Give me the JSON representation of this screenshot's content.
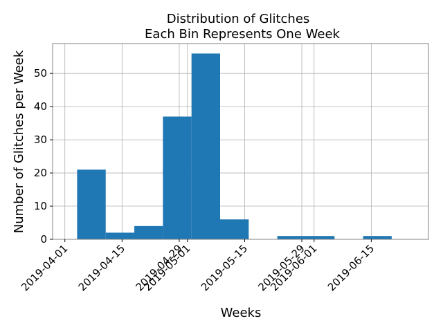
{
  "chart_data": {
    "type": "bar",
    "title_lines": [
      "Distribution of Glitches",
      "Each Bin Represents One Week"
    ],
    "xlabel": "Weeks",
    "ylabel": "Number of Glitches per Week",
    "ylim": [
      0,
      59
    ],
    "xlim": [
      "2019-03-29",
      "2019-06-29"
    ],
    "grid": true,
    "bar_color": "#1f77b4",
    "yticks": [
      0,
      10,
      20,
      30,
      40,
      50
    ],
    "xticks": [
      {
        "date": "2019-04-01",
        "label": "2019-04-01"
      },
      {
        "date": "2019-04-15",
        "label": "2019-04-15"
      },
      {
        "date": "2019-04-29",
        "label": "2019-04-29"
      },
      {
        "date": "2019-05-01",
        "label": "2019-05-01"
      },
      {
        "date": "2019-05-15",
        "label": "2019-05-15"
      },
      {
        "date": "2019-05-29",
        "label": "2019-05-29"
      },
      {
        "date": "2019-06-01",
        "label": "2019-06-01"
      },
      {
        "date": "2019-06-15",
        "label": "2019-06-15"
      }
    ],
    "bins": [
      {
        "start": "2019-04-04",
        "end": "2019-04-11",
        "value": 21
      },
      {
        "start": "2019-04-11",
        "end": "2019-04-18",
        "value": 2
      },
      {
        "start": "2019-04-18",
        "end": "2019-04-25",
        "value": 4
      },
      {
        "start": "2019-04-25",
        "end": "2019-05-02",
        "value": 37
      },
      {
        "start": "2019-05-02",
        "end": "2019-05-09",
        "value": 56
      },
      {
        "start": "2019-05-09",
        "end": "2019-05-16",
        "value": 6
      },
      {
        "start": "2019-05-16",
        "end": "2019-05-23",
        "value": 0
      },
      {
        "start": "2019-05-23",
        "end": "2019-05-30",
        "value": 1
      },
      {
        "start": "2019-05-30",
        "end": "2019-06-06",
        "value": 1
      },
      {
        "start": "2019-06-06",
        "end": "2019-06-13",
        "value": 0
      },
      {
        "start": "2019-06-13",
        "end": "2019-06-20",
        "value": 1
      }
    ]
  }
}
